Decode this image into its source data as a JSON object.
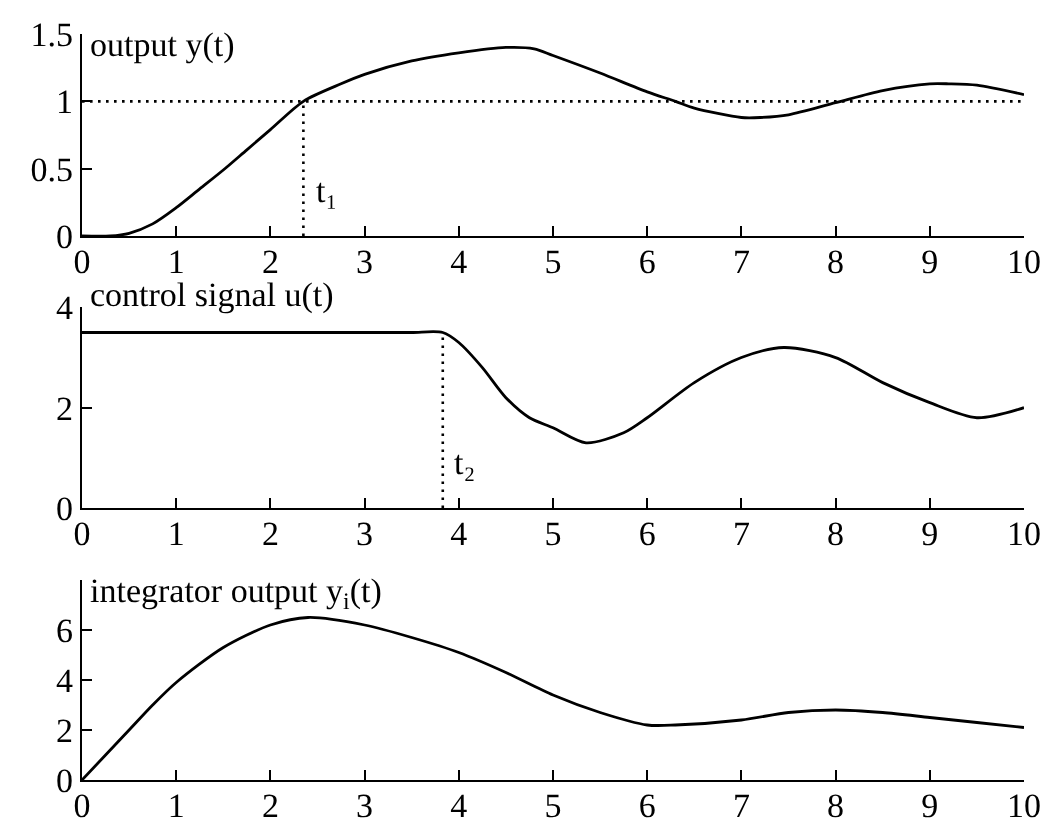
{
  "chart_data": [
    {
      "type": "line",
      "title": "output y(t)",
      "x": [
        0,
        0.3,
        0.5,
        0.75,
        1,
        1.25,
        1.5,
        1.75,
        2,
        2.35,
        2.75,
        3,
        3.5,
        4,
        4.5,
        4.8,
        5,
        5.5,
        6,
        6.3,
        6.5,
        7,
        7.2,
        7.5,
        8,
        8.5,
        9,
        9.2,
        9.5,
        10
      ],
      "series": [
        {
          "color": "#000000",
          "values": [
            0,
            0,
            0.02,
            0.09,
            0.21,
            0.35,
            0.49,
            0.64,
            0.79,
            1.0,
            1.13,
            1.2,
            1.3,
            1.36,
            1.4,
            1.39,
            1.34,
            1.21,
            1.07,
            1.0,
            0.95,
            0.88,
            0.88,
            0.9,
            0.99,
            1.08,
            1.13,
            1.13,
            1.12,
            1.05
          ]
        }
      ],
      "xlim": [
        0,
        10
      ],
      "xticks": [
        0,
        1,
        2,
        3,
        4,
        5,
        6,
        7,
        8,
        9,
        10
      ],
      "ylim": [
        0,
        1.5
      ],
      "yticks": [
        0,
        0.5,
        1,
        1.5
      ],
      "ref_lines": [
        {
          "axis": "y",
          "value": 1,
          "color": "#000000",
          "line_style": "dotted"
        },
        {
          "axis": "x",
          "value": 2.35,
          "label": "t₁",
          "color": "#000000",
          "line_style": "dotted"
        }
      ]
    },
    {
      "type": "line",
      "title": "control signal u(t)",
      "x": [
        0,
        1,
        2,
        3,
        3.5,
        3.83,
        4,
        4.25,
        4.5,
        4.75,
        5,
        5.35,
        5.75,
        6,
        6.5,
        7,
        7.45,
        8,
        8.5,
        9,
        9.5,
        10
      ],
      "series": [
        {
          "color": "#000000",
          "values": [
            3.5,
            3.5,
            3.5,
            3.5,
            3.5,
            3.5,
            3.3,
            2.8,
            2.2,
            1.8,
            1.6,
            1.3,
            1.5,
            1.8,
            2.5,
            3.0,
            3.2,
            3.0,
            2.5,
            2.1,
            1.8,
            2.0
          ]
        }
      ],
      "xlim": [
        0,
        10
      ],
      "xticks": [
        0,
        1,
        2,
        3,
        4,
        5,
        6,
        7,
        8,
        9,
        10
      ],
      "ylim": [
        0,
        4
      ],
      "yticks": [
        0,
        2,
        4
      ],
      "ref_lines": [
        {
          "axis": "x",
          "value": 3.83,
          "label": "t₂",
          "color": "#000000",
          "line_style": "dotted"
        }
      ]
    },
    {
      "type": "line",
      "title": "integrator output y$_{i}$(t)",
      "x": [
        0,
        0.25,
        0.5,
        0.75,
        1,
        1.5,
        2,
        2.4,
        3,
        3.5,
        4,
        4.5,
        5,
        5.5,
        6,
        6.3,
        7,
        7.5,
        8,
        8.5,
        9,
        9.5,
        10
      ],
      "series": [
        {
          "color": "#000000",
          "values": [
            0,
            1.0,
            2.0,
            3.0,
            3.9,
            5.3,
            6.2,
            6.5,
            6.2,
            5.7,
            5.1,
            4.3,
            3.4,
            2.7,
            2.2,
            2.2,
            2.4,
            2.7,
            2.8,
            2.7,
            2.5,
            2.3,
            2.1
          ]
        }
      ],
      "xlim": [
        0,
        10
      ],
      "xticks": [
        0,
        1,
        2,
        3,
        4,
        5,
        6,
        7,
        8,
        9,
        10
      ],
      "ylim": [
        0,
        8
      ],
      "yticks": [
        0,
        2,
        4,
        6
      ]
    }
  ]
}
